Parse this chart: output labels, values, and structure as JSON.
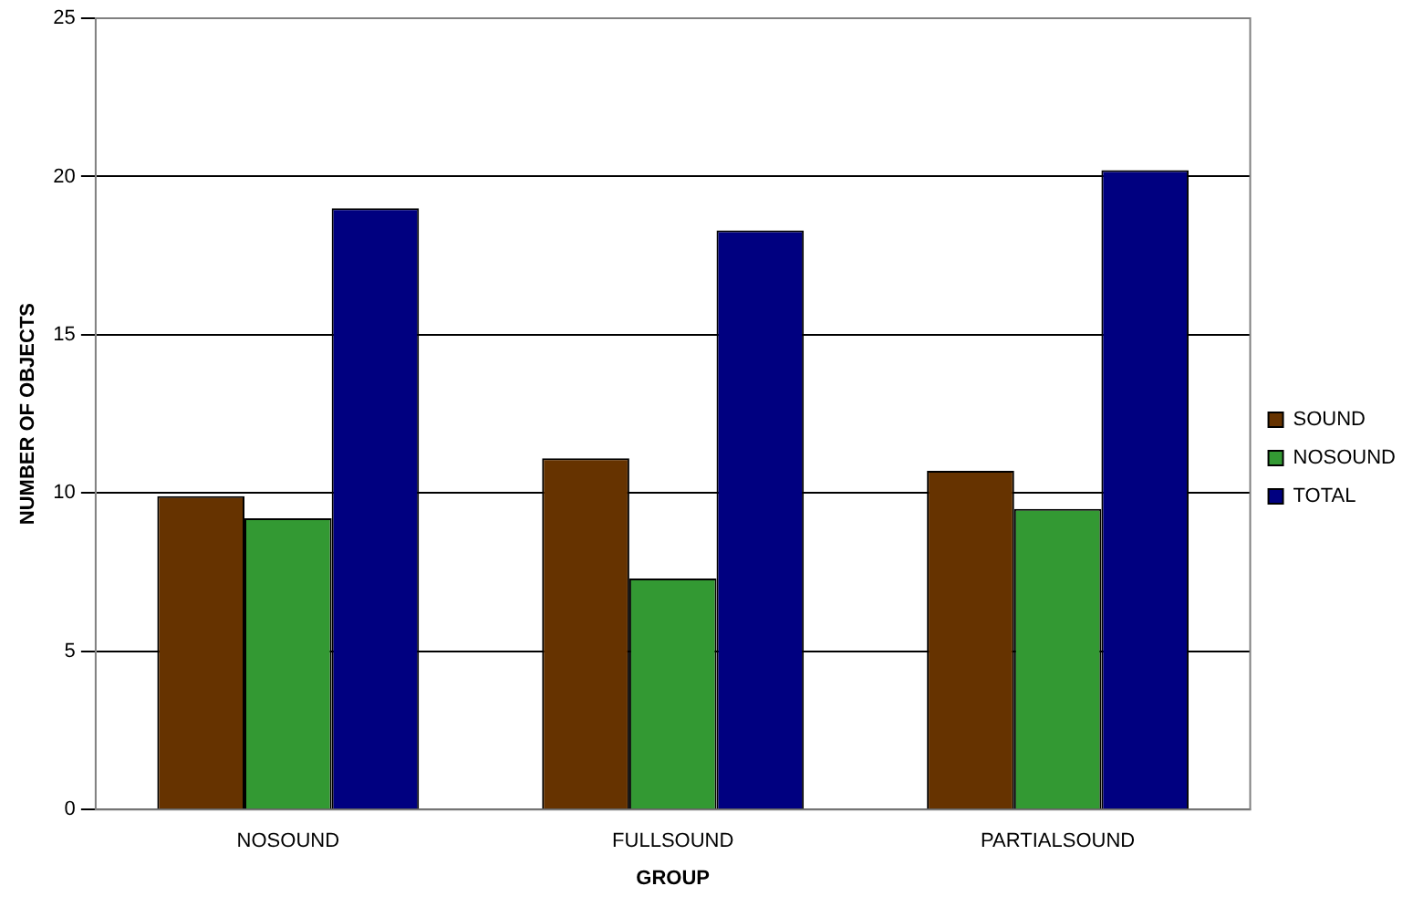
{
  "chart_data": {
    "type": "bar",
    "xlabel": "GROUP",
    "ylabel": "NUMBER OF OBJECTS",
    "categories": [
      "NOSOUND",
      "FULLSOUND",
      "PARTIALSOUND"
    ],
    "series": [
      {
        "name": "SOUND",
        "color": "#663300",
        "values": [
          9.9,
          11.1,
          10.7
        ]
      },
      {
        "name": "NOSOUND",
        "color": "#339933",
        "values": [
          9.2,
          7.3,
          9.5
        ]
      },
      {
        "name": "TOTAL",
        "color": "#000080",
        "values": [
          19.0,
          18.3,
          20.2
        ]
      }
    ],
    "ylim": [
      0,
      25
    ],
    "yticks": [
      0,
      5,
      10,
      15,
      20,
      25
    ],
    "grid": "y",
    "legend": "right"
  }
}
